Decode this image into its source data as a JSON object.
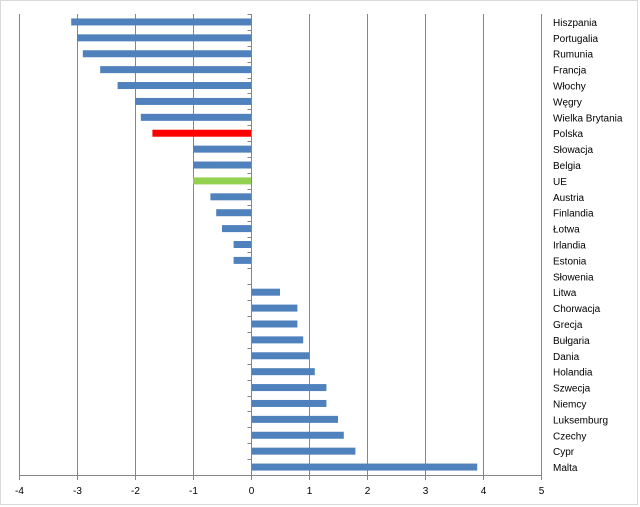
{
  "chart_data": {
    "type": "bar",
    "orientation": "horizontal",
    "categories": [
      "Hiszpania",
      "Portugalia",
      "Rumunia",
      "Francja",
      "Włochy",
      "Węgry",
      "Wielka Brytania",
      "Polska",
      "Słowacja",
      "Belgia",
      "UE",
      "Austria",
      "Finlandia",
      "Łotwa",
      "Irlandia",
      "Estonia",
      "Słowenia",
      "Litwa",
      "Chorwacja",
      "Grecja",
      "Bułgaria",
      "Dania",
      "Holandia",
      "Szwecja",
      "Niemcy",
      "Luksemburg",
      "Czechy",
      "Cypr",
      "Malta"
    ],
    "values": [
      -3.1,
      -3.0,
      -2.9,
      -2.6,
      -2.3,
      -2.0,
      -1.9,
      -1.7,
      -1.0,
      -1.0,
      -1.0,
      -0.7,
      -0.6,
      -0.5,
      -0.3,
      -0.3,
      0.0,
      0.5,
      0.8,
      0.8,
      0.9,
      1.0,
      1.1,
      1.3,
      1.3,
      1.5,
      1.6,
      1.8,
      3.9
    ],
    "bar_colors": [
      "#4f81bd",
      "#4f81bd",
      "#4f81bd",
      "#4f81bd",
      "#4f81bd",
      "#4f81bd",
      "#4f81bd",
      "#ff0000",
      "#4f81bd",
      "#4f81bd",
      "#92d050",
      "#4f81bd",
      "#4f81bd",
      "#4f81bd",
      "#4f81bd",
      "#4f81bd",
      "#4f81bd",
      "#4f81bd",
      "#4f81bd",
      "#4f81bd",
      "#4f81bd",
      "#4f81bd",
      "#4f81bd",
      "#4f81bd",
      "#4f81bd",
      "#4f81bd",
      "#4f81bd",
      "#4f81bd",
      "#4f81bd"
    ],
    "xlim": [
      -4,
      5
    ],
    "xticks": [
      "-4",
      "-3",
      "-2",
      "-1",
      "0",
      "1",
      "2",
      "3",
      "4",
      "5"
    ],
    "grid": "vertical",
    "gridline_color": "#868686",
    "axis_color": "#868686",
    "category_labels_side": "right"
  }
}
